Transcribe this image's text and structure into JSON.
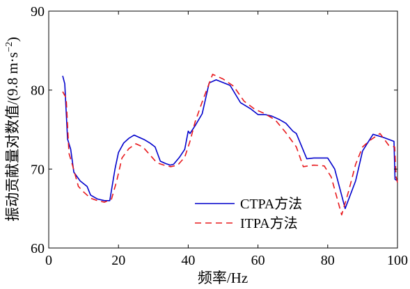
{
  "chart_data": {
    "type": "line",
    "xlabel": "频率/Hz",
    "ylabel": "振动贡献量对数值/(9.8 m·s",
    "ylabel_superscript": "−2",
    "ylabel_close": ")",
    "xlim": [
      0,
      100
    ],
    "ylim": [
      60,
      90
    ],
    "xticks": [
      0,
      20,
      40,
      60,
      80,
      100
    ],
    "yticks": [
      60,
      70,
      80,
      90
    ],
    "grid": false,
    "legend_position": "bottom-center",
    "series": [
      {
        "name": "CTPA方法",
        "color": "#0000cc",
        "dash": "solid",
        "x": [
          4,
          4.6,
          5.4,
          6.3,
          7.2,
          9,
          11,
          12,
          14,
          16,
          17.5,
          19,
          20,
          21.5,
          23,
          24.5,
          26,
          27.5,
          29,
          30.5,
          32,
          33.5,
          34.8,
          35.8,
          37.5,
          39,
          40,
          40.5,
          42,
          44,
          46,
          48,
          52,
          55,
          58,
          60,
          62,
          64,
          66,
          68,
          70,
          71,
          74,
          76,
          78,
          80,
          82,
          85,
          88,
          90,
          93,
          96,
          99,
          99.3,
          100
        ],
        "y": [
          81.8,
          80.8,
          73.8,
          72.5,
          69.6,
          68.5,
          67.8,
          66.7,
          66.2,
          66.0,
          66.0,
          70.0,
          72.1,
          73.3,
          73.9,
          74.3,
          74.0,
          73.7,
          73.3,
          72.8,
          71.0,
          70.7,
          70.5,
          70.6,
          71.5,
          72.5,
          74.8,
          74.5,
          75.5,
          77.0,
          80.9,
          81.3,
          80.6,
          78.4,
          77.6,
          76.9,
          76.9,
          76.7,
          76.3,
          75.8,
          74.8,
          74.5,
          71.3,
          71.4,
          71.4,
          71.4,
          70.0,
          65.0,
          68.5,
          72.3,
          74.4,
          74.0,
          73.5,
          68.7,
          68.5
        ]
      },
      {
        "name": "ITPA方法",
        "color": "#e8181c",
        "dash": "dashed",
        "x": [
          4,
          5,
          5.8,
          7,
          8.5,
          10,
          12,
          14,
          16,
          18,
          19.5,
          21,
          23,
          25,
          27,
          29,
          31,
          33,
          35,
          37,
          39,
          40.5,
          42,
          44,
          47,
          50,
          53,
          56,
          59,
          62,
          65,
          68,
          71,
          73,
          76,
          79,
          81,
          84,
          86,
          88,
          90,
          92,
          95,
          97.5,
          99.2,
          99.6,
          100
        ],
        "y": [
          79.8,
          79.0,
          72.0,
          70.2,
          67.8,
          67.1,
          66.3,
          66.0,
          65.8,
          66.2,
          68.5,
          71.4,
          72.6,
          73.2,
          72.8,
          71.8,
          70.8,
          70.5,
          70.3,
          70.5,
          71.5,
          73.5,
          76.0,
          78.5,
          82.0,
          81.4,
          80.5,
          78.6,
          77.6,
          77.0,
          76.2,
          74.6,
          72.8,
          70.3,
          70.5,
          70.4,
          69.0,
          64.2,
          67.2,
          70.6,
          72.8,
          73.6,
          74.5,
          73.0,
          72.8,
          69.0,
          68.3
        ]
      }
    ]
  }
}
